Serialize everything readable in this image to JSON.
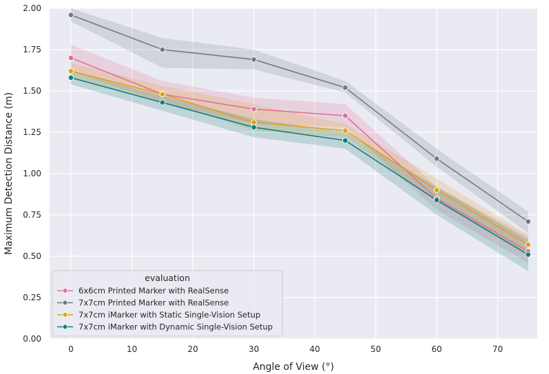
{
  "chart_data": {
    "type": "line",
    "xlabel": "Angle of View (°)",
    "ylabel": "Maximum Detection Distance (m)",
    "xlim": [
      -3.5,
      76.5
    ],
    "ylim": [
      0,
      2.0
    ],
    "x_ticks": [
      0,
      10,
      20,
      30,
      40,
      50,
      60,
      70
    ],
    "x_tick_labels": [
      "0",
      "10",
      "20",
      "30",
      "40",
      "50",
      "60",
      "70"
    ],
    "y_ticks": [
      0,
      0.25,
      0.5,
      0.75,
      1.0,
      1.25,
      1.5,
      1.75,
      2.0
    ],
    "y_tick_labels": [
      "0.00",
      "0.25",
      "0.50",
      "0.75",
      "1.00",
      "1.25",
      "1.50",
      "1.75",
      "2.00"
    ],
    "grid": true,
    "legend": {
      "title": "evaluation",
      "placement": "lower-left"
    },
    "x": [
      0,
      15,
      30,
      45,
      60,
      75
    ],
    "series": [
      {
        "name": "6x6cm Printed Marker with RealSense",
        "color": "#e07098",
        "values": [
          1.7,
          1.48,
          1.39,
          1.35,
          0.85,
          0.53
        ],
        "ci_low": [
          1.62,
          1.43,
          1.3,
          1.28,
          0.78,
          0.46
        ],
        "ci_high": [
          1.78,
          1.56,
          1.46,
          1.42,
          0.92,
          0.62
        ]
      },
      {
        "name": "7x7cm Printed Marker with RealSense",
        "color": "#6e7b8b",
        "values": [
          1.96,
          1.75,
          1.69,
          1.52,
          1.09,
          0.71
        ],
        "ci_low": [
          1.92,
          1.64,
          1.63,
          1.49,
          1.04,
          0.64
        ],
        "ci_high": [
          2.0,
          1.82,
          1.75,
          1.56,
          1.15,
          0.77
        ]
      },
      {
        "name": "7x7cm iMarker with Static Single-Vision Setup",
        "color": "#e0a21a",
        "values": [
          1.62,
          1.48,
          1.31,
          1.26,
          0.9,
          0.57
        ],
        "ci_low": [
          1.58,
          1.44,
          1.26,
          1.22,
          0.83,
          0.5
        ],
        "ci_high": [
          1.67,
          1.53,
          1.42,
          1.3,
          0.97,
          0.63
        ]
      },
      {
        "name": "7x7cm iMarker with Dynamic Single-Vision Setup",
        "color": "#0f7f7a",
        "values": [
          1.58,
          1.43,
          1.28,
          1.2,
          0.84,
          0.51
        ],
        "ci_low": [
          1.54,
          1.38,
          1.22,
          1.15,
          0.75,
          0.41
        ],
        "ci_high": [
          1.62,
          1.47,
          1.33,
          1.25,
          0.92,
          0.6
        ]
      }
    ]
  }
}
